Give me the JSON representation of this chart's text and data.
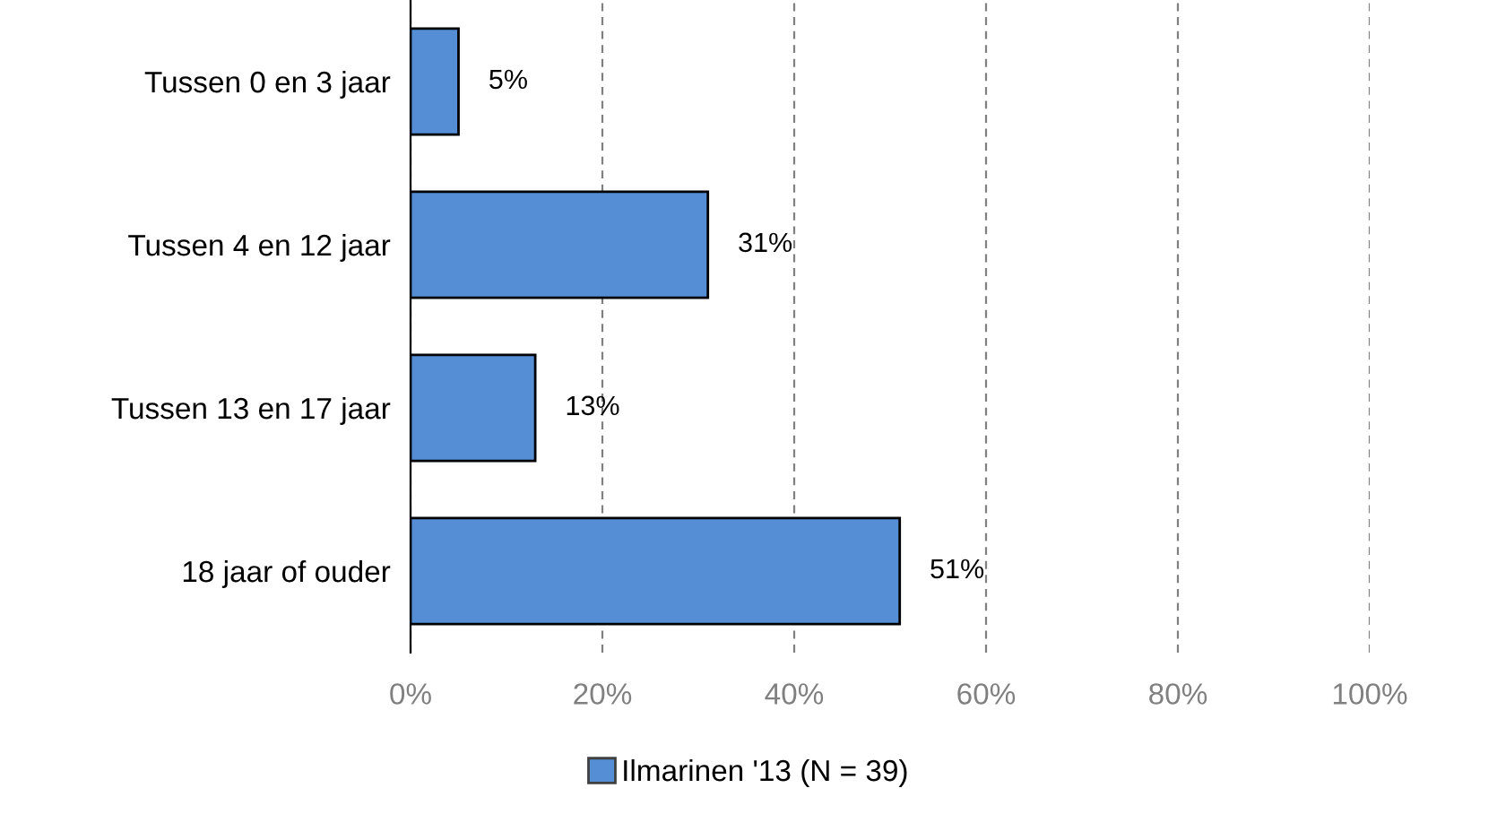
{
  "chart_data": {
    "type": "bar",
    "orientation": "horizontal",
    "categories": [
      "Tussen 0 en 3 jaar",
      "Tussen 4 en 12 jaar",
      "Tussen 13 en 17 jaar",
      "18 jaar of ouder"
    ],
    "series": [
      {
        "name": "Ilmarinen '13 (N = 39)",
        "color": "#558ed5",
        "values": [
          5,
          31,
          13,
          51
        ],
        "value_labels": [
          "5%",
          "31%",
          "13%",
          "51%"
        ]
      }
    ],
    "xlim": [
      0,
      100
    ],
    "xticks": [
      {
        "value": 0,
        "label": "0%"
      },
      {
        "value": 20,
        "label": "20%"
      },
      {
        "value": 40,
        "label": "40%"
      },
      {
        "value": 60,
        "label": "60%"
      },
      {
        "value": 80,
        "label": "80%"
      },
      {
        "value": 100,
        "label": "100%"
      }
    ],
    "grid": "x",
    "legend": "bottom"
  }
}
